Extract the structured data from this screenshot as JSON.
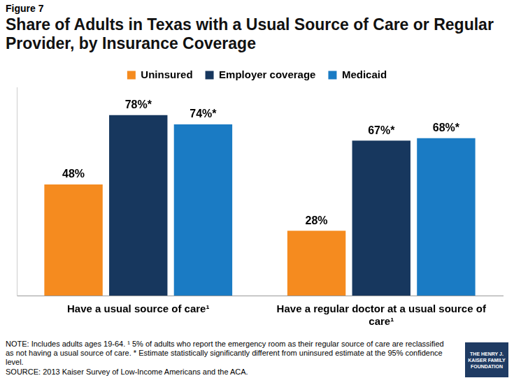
{
  "chart_data": {
    "type": "bar",
    "figure_label": "Figure 7",
    "title": "Share of Adults in Texas with a Usual Source of Care or Regular Provider, by Insurance Coverage",
    "categories": [
      [
        "Have a usual source of care¹"
      ],
      [
        "Have a regular doctor at a usual source of",
        "care¹"
      ]
    ],
    "series": [
      {
        "name": "Uninsured",
        "color": "#f58b1f",
        "values": [
          48,
          28
        ],
        "value_labels": [
          "48%",
          "28%"
        ]
      },
      {
        "name": "Employer coverage",
        "color": "#17375e",
        "values": [
          78,
          67
        ],
        "value_labels": [
          "78%*",
          "67%*"
        ]
      },
      {
        "name": "Medicaid",
        "color": "#1a7bc4",
        "values": [
          74,
          68
        ],
        "value_labels": [
          "74%*",
          "68%*"
        ]
      }
    ],
    "ylim": [
      0,
      90
    ],
    "grid": false,
    "legend": "top",
    "data_labels": true,
    "tick_labels": "x",
    "note": "NOTE: Includes adults ages 19-64. ¹ 5% of adults who report the emergency room as their regular source of care are reclassified as not having a usual source of care. * Estimate statistically significantly different from uninsured estimate at the 95% confidence level.",
    "source": "SOURCE: 2013 Kaiser Survey of Low-Income Americans and the ACA.",
    "logo": "THE HENRY J. KAISER FAMILY FOUNDATION"
  }
}
